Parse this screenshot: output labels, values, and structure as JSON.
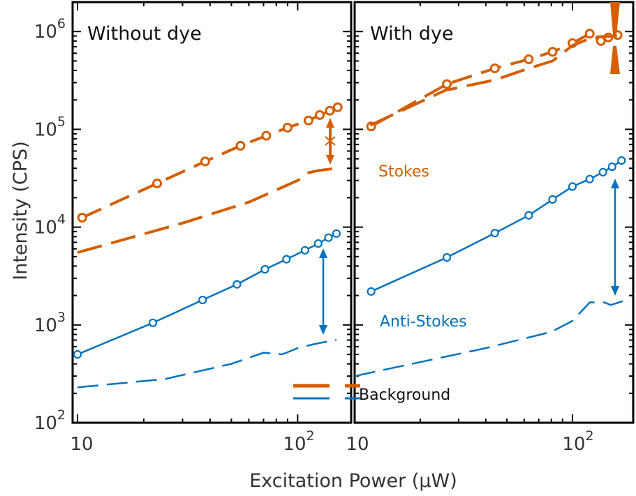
{
  "figure": {
    "ylabel": "Intensity (CPS)",
    "xlabel": "Excitation Power (μW)",
    "legend": {
      "label": "Background"
    },
    "colors": {
      "stokes": "#D55E00",
      "anti_stokes": "#0072BD",
      "axis": "#000000"
    }
  },
  "chart_data": [
    {
      "type": "line",
      "title": "Without dye",
      "xscale": "log",
      "yscale": "log",
      "xlim": [
        9.5,
        175
      ],
      "ylim": [
        100,
        2000000
      ],
      "xticks": [
        {
          "base": "10",
          "exp": ""
        },
        {
          "base": "10",
          "exp": "2"
        }
      ],
      "yticks": [
        {
          "base": "10",
          "exp": "2"
        },
        {
          "base": "10",
          "exp": "3"
        },
        {
          "base": "10",
          "exp": "4"
        },
        {
          "base": "10",
          "exp": "5"
        },
        {
          "base": "10",
          "exp": "6"
        }
      ],
      "annotations": [],
      "series": [
        {
          "key": "stokes",
          "style": "marker-line",
          "color": "#D55E00",
          "x": [
            10.5,
            23,
            38,
            55,
            72,
            90,
            112,
            126,
            140,
            152
          ],
          "y": [
            12500,
            28000,
            47000,
            68000,
            86000,
            104000,
            123000,
            140000,
            155000,
            168000
          ]
        },
        {
          "key": "stokes_bg",
          "style": "long-dash",
          "color": "#D55E00",
          "x": [
            10,
            30,
            60,
            100,
            112,
            125,
            150
          ],
          "y": [
            5500,
            11000,
            18000,
            30000,
            36000,
            38000,
            40000
          ]
        },
        {
          "key": "anti_stokes",
          "style": "marker-line",
          "color": "#0072BD",
          "x": [
            10,
            22,
            37,
            53,
            71,
            89,
            108,
            124,
            138,
            150
          ],
          "y": [
            500,
            1050,
            1800,
            2600,
            3700,
            4700,
            5800,
            6800,
            7800,
            8600
          ]
        },
        {
          "key": "anti_stokes_bg",
          "style": "dash",
          "color": "#0072BD",
          "x": [
            10,
            25,
            50,
            70,
            85,
            100,
            120,
            142,
            150
          ],
          "y": [
            230,
            280,
            400,
            520,
            500,
            580,
            640,
            690,
            700
          ]
        }
      ]
    },
    {
      "type": "line",
      "title": "With dye",
      "xscale": "log",
      "yscale": "log",
      "xlim": [
        10,
        190
      ],
      "ylim": [
        100,
        2000000
      ],
      "xticks": [
        {
          "base": "10",
          "exp": ""
        },
        {
          "base": "10",
          "exp": "2"
        }
      ],
      "yticks": [],
      "annotations": [
        "Stokes",
        "Anti-Stokes"
      ],
      "series": [
        {
          "key": "stokes",
          "style": "marker-line",
          "color": "#D55E00",
          "x": [
            11.9,
            26.5,
            44,
            63,
            81,
            100,
            120,
            135,
            146,
            161
          ],
          "y": [
            107000,
            290000,
            420000,
            520000,
            620000,
            760000,
            950000,
            800000,
            870000,
            920000
          ]
        },
        {
          "key": "stokes_bg",
          "style": "long-dash",
          "color": "#D55E00",
          "x": [
            11.8,
            26,
            44,
            63,
            81,
            100,
            125,
            160
          ],
          "y": [
            110000,
            250000,
            320000,
            420000,
            500000,
            720000,
            880000,
            900000
          ]
        },
        {
          "key": "anti_stokes",
          "style": "marker-line",
          "color": "#0072BD",
          "x": [
            11.9,
            26.5,
            44,
            63,
            81,
            100,
            120,
            138,
            152,
            168
          ],
          "y": [
            2200,
            4900,
            8700,
            13200,
            19200,
            26000,
            31000,
            36500,
            41500,
            48000
          ]
        },
        {
          "key": "anti_stokes_bg",
          "style": "dash",
          "color": "#0072BD",
          "x": [
            10,
            40,
            80,
            100,
            120,
            140,
            150,
            170
          ],
          "y": [
            300,
            580,
            850,
            1100,
            1700,
            1700,
            1600,
            1750
          ]
        }
      ]
    }
  ]
}
